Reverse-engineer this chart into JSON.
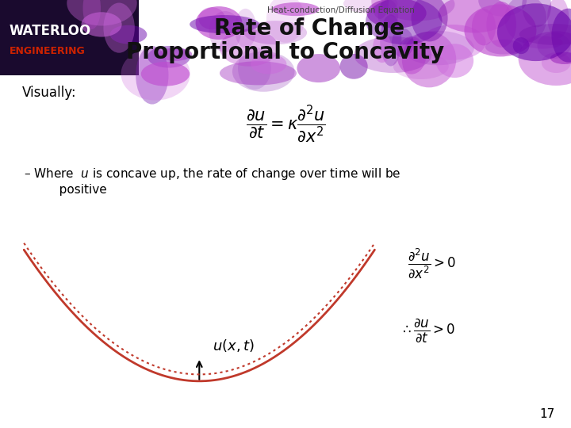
{
  "title_small": "Heat-conduction/Diffusion Equation",
  "title_large_line1": "Rate of Change",
  "title_large_line2": "Proportional to Concavity",
  "visually_text": "Visually:",
  "equation_main": "$\\dfrac{\\partial u}{\\partial t} = \\kappa\\dfrac{\\partial^2 u}{\\partial x^2}$",
  "bullet_line1": "– Where  $u$ is concave up, the rate of change over time will be",
  "bullet_line2": "   positive",
  "annotation_label": "$u(x, t)$",
  "annotation_right1": "$\\dfrac{\\partial^2 u}{\\partial x^2} > 0$",
  "annotation_right2": "$\\therefore \\dfrac{\\partial u}{\\partial t} > 0$",
  "page_number": "17",
  "curve_color": "#c0392b",
  "dotted_color": "#c0392b",
  "bg_color": "#ffffff",
  "waterloo_text": "WATERLOO",
  "engineering_text": "ENGINEERING",
  "waterloo_color": "#ffffff",
  "engineering_color": "#cc2200",
  "header_dark_color": "#1a0a2e",
  "purple_flame_color": "#aa44cc"
}
